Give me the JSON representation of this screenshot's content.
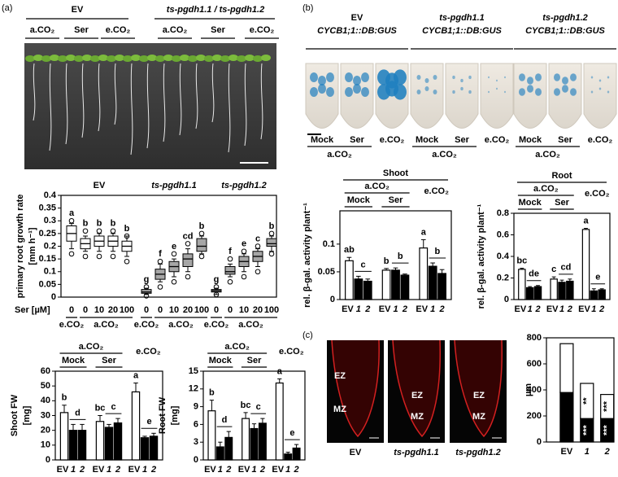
{
  "panel_labels": [
    "(a)",
    "(b)",
    "(c)"
  ],
  "photo_a": {
    "genotypes": [
      "EV",
      "ts-pgdh1.1 / ts-pgdh1.2"
    ],
    "conditions": [
      "a.CO₂",
      "Ser",
      "e.CO₂",
      "a.CO₂",
      "Ser",
      "e.CO₂"
    ]
  },
  "photo_b": {
    "genotypes": [
      "EV",
      "ts-pgdh1.1",
      "ts-pgdh1.2"
    ],
    "reporters": [
      "CYCB1;1::DB:GUS",
      "CYCB1;1::DB:GUS",
      "CYCB1;1::DB:GUS"
    ],
    "treatments": [
      "Mock",
      "Ser",
      "e.CO₂",
      "Mock",
      "Ser",
      "e.CO₂",
      "Mock",
      "Ser",
      "e.CO₂"
    ],
    "co2": [
      "a.CO₂",
      "a.CO₂",
      "a.CO₂"
    ]
  },
  "photo_c": {
    "images": [
      {
        "caption": "EV",
        "zones": [
          "EZ",
          "MZ"
        ]
      },
      {
        "caption": "ts-pgdh1.1",
        "zones": [
          "EZ",
          "MZ"
        ]
      },
      {
        "caption": "ts-pgdh1.2",
        "zones": [
          "EZ",
          "MZ"
        ]
      }
    ]
  },
  "chart_data": [
    {
      "type": "box",
      "ylabel": [
        "primary root growth rate",
        "[mm h⁻¹]"
      ],
      "groups": [
        "EV",
        "ts-pgdh1.1",
        "ts-pgdh1.2"
      ],
      "colors": [
        "#ffffff",
        "#a6a6a6",
        "#a6a6a6"
      ],
      "xlabel": "Ser [µM]",
      "categories": [
        "0",
        "0",
        "10",
        "20",
        "100",
        "0",
        "0",
        "10",
        "20",
        "100",
        "0",
        "0",
        "10",
        "20",
        "100"
      ],
      "conditions": [
        "e.CO₂",
        "a.CO₂",
        "e.CO₂",
        "a.CO₂",
        "e.CO₂",
        "a.CO₂"
      ],
      "boxes": [
        {
          "whislo": 0.19,
          "q1": 0.22,
          "med": 0.25,
          "q3": 0.28,
          "whishi": 0.29,
          "fliers": [
            0.17,
            0.3
          ]
        },
        {
          "whislo": 0.18,
          "q1": 0.19,
          "med": 0.21,
          "q3": 0.23,
          "whishi": 0.24,
          "fliers": [
            0.16,
            0.26
          ]
        },
        {
          "whislo": 0.18,
          "q1": 0.2,
          "med": 0.22,
          "q3": 0.24,
          "whishi": 0.25,
          "fliers": [
            0.16,
            0.26
          ]
        },
        {
          "whislo": 0.18,
          "q1": 0.2,
          "med": 0.22,
          "q3": 0.24,
          "whishi": 0.25,
          "fliers": [
            0.16,
            0.26
          ]
        },
        {
          "whislo": 0.16,
          "q1": 0.18,
          "med": 0.2,
          "q3": 0.22,
          "whishi": 0.24,
          "fliers": [
            0.14,
            0.24
          ]
        },
        {
          "whislo": 0.01,
          "q1": 0.015,
          "med": 0.02,
          "q3": 0.03,
          "whishi": 0.035,
          "fliers": [
            0.005,
            0.04
          ]
        },
        {
          "whislo": 0.06,
          "q1": 0.07,
          "med": 0.09,
          "q3": 0.11,
          "whishi": 0.13,
          "fliers": [
            0.04,
            0.14
          ]
        },
        {
          "whislo": 0.08,
          "q1": 0.1,
          "med": 0.12,
          "q3": 0.14,
          "whishi": 0.15,
          "fliers": [
            0.06,
            0.17
          ]
        },
        {
          "whislo": 0.1,
          "q1": 0.12,
          "med": 0.15,
          "q3": 0.17,
          "whishi": 0.19,
          "fliers": [
            0.08,
            0.21
          ]
        },
        {
          "whislo": 0.17,
          "q1": 0.18,
          "med": 0.2,
          "q3": 0.23,
          "whishi": 0.24,
          "fliers": [
            0.16,
            0.25
          ]
        },
        {
          "whislo": 0.01,
          "q1": 0.02,
          "med": 0.025,
          "q3": 0.03,
          "whishi": 0.035,
          "fliers": [
            0.01,
            0.04
          ]
        },
        {
          "whislo": 0.08,
          "q1": 0.09,
          "med": 0.1,
          "q3": 0.12,
          "whishi": 0.13,
          "fliers": [
            0.06,
            0.15
          ]
        },
        {
          "whislo": 0.1,
          "q1": 0.12,
          "med": 0.14,
          "q3": 0.16,
          "whishi": 0.17,
          "fliers": [
            0.08,
            0.18
          ]
        },
        {
          "whislo": 0.12,
          "q1": 0.14,
          "med": 0.16,
          "q3": 0.18,
          "whishi": 0.19,
          "fliers": [
            0.1,
            0.2
          ]
        },
        {
          "whislo": 0.18,
          "q1": 0.2,
          "med": 0.21,
          "q3": 0.23,
          "whishi": 0.24,
          "fliers": [
            0.17,
            0.25
          ]
        }
      ],
      "letters": [
        "a",
        "b",
        "b",
        "b",
        "b",
        "g",
        "f",
        "e",
        "cd",
        "b",
        "g",
        "f",
        "e",
        "c",
        "b"
      ],
      "ylim": [
        0,
        0.4
      ],
      "yticks": [
        0,
        0.05,
        0.1,
        0.15,
        0.2,
        0.25,
        0.3,
        0.35,
        0.4
      ]
    },
    {
      "type": "bar",
      "ylabel": [
        "Shoot FW",
        "[mg]"
      ],
      "super_label": "a.CO₂",
      "group_labels": [
        "Mock",
        "Ser",
        "e.CO₂"
      ],
      "categories": [
        "EV",
        "1",
        "2",
        "EV",
        "1",
        "2",
        "EV",
        "1",
        "2"
      ],
      "values": [
        32,
        20,
        20,
        26,
        22,
        25,
        46,
        15,
        16
      ],
      "errors": [
        5,
        4,
        4,
        4,
        2,
        3,
        6,
        1,
        2
      ],
      "colors": [
        "#ffffff",
        "#000000",
        "#000000",
        "#ffffff",
        "#000000",
        "#000000",
        "#ffffff",
        "#000000",
        "#000000"
      ],
      "letters": [
        "b",
        "d",
        null,
        "bc",
        "c",
        null,
        "a",
        "e",
        null
      ],
      "ylim": [
        0,
        60
      ],
      "yticks": [
        0,
        10,
        20,
        30,
        40,
        50,
        60
      ]
    },
    {
      "type": "bar",
      "ylabel": [
        "Root FW",
        "[mg]"
      ],
      "super_label": "a.CO₂",
      "group_labels": [
        "Mock",
        "Ser",
        "e.CO₂"
      ],
      "categories": [
        "EV",
        "1",
        "2",
        "EV",
        "1",
        "2",
        "EV",
        "1",
        "2"
      ],
      "values": [
        8.3,
        2.2,
        3.8,
        7,
        5.3,
        6.2,
        13,
        1,
        2
      ],
      "errors": [
        1.8,
        0.8,
        1,
        1,
        0.8,
        0.8,
        0.7,
        0.3,
        0.6
      ],
      "colors": [
        "#ffffff",
        "#000000",
        "#000000",
        "#ffffff",
        "#000000",
        "#000000",
        "#ffffff",
        "#000000",
        "#000000"
      ],
      "letters": [
        "b",
        "d",
        null,
        "bc",
        "c",
        null,
        "a",
        "e",
        null
      ],
      "ylim": [
        0,
        15
      ],
      "yticks": [
        0,
        3,
        6,
        9,
        12,
        15
      ]
    },
    {
      "type": "bar",
      "title": "Shoot",
      "ylabel": "rel. β-gal. activity plant⁻¹",
      "super_label": "a.CO₂",
      "group_labels": [
        "Mock",
        "Ser",
        "e.CO₂"
      ],
      "categories": [
        "EV",
        "1",
        "2",
        "EV",
        "1",
        "2",
        "EV",
        "1",
        "2"
      ],
      "values": [
        0.07,
        0.037,
        0.033,
        0.053,
        0.053,
        0.044,
        0.093,
        0.06,
        0.047
      ],
      "errors": [
        0.006,
        0.005,
        0.004,
        0.003,
        0.004,
        0.002,
        0.015,
        0.006,
        0.007
      ],
      "colors": [
        "#ffffff",
        "#000000",
        "#000000",
        "#ffffff",
        "#000000",
        "#000000",
        "#ffffff",
        "#000000",
        "#000000"
      ],
      "letters": [
        "ab",
        "c",
        null,
        "b",
        "b",
        null,
        "a",
        "b",
        null
      ],
      "ylim": [
        0,
        0.16
      ],
      "yticks": [
        0,
        0.05,
        0.1
      ]
    },
    {
      "type": "bar",
      "title": "Root",
      "ylabel": "rel. β-gal. activity plant⁻¹",
      "super_label": "a.CO₂",
      "group_labels": [
        "Mock",
        "Ser",
        "e.CO₂"
      ],
      "categories": [
        "EV",
        "1",
        "2",
        "EV",
        "1",
        "2",
        "EV",
        "1",
        "2"
      ],
      "values": [
        0.28,
        0.11,
        0.12,
        0.19,
        0.16,
        0.17,
        0.65,
        0.08,
        0.09
      ],
      "errors": [
        0.01,
        0.01,
        0.01,
        0.02,
        0.02,
        0.02,
        0.01,
        0.02,
        0.01
      ],
      "colors": [
        "#ffffff",
        "#000000",
        "#000000",
        "#ffffff",
        "#000000",
        "#000000",
        "#ffffff",
        "#000000",
        "#000000"
      ],
      "letters": [
        "bc",
        "de",
        null,
        "c",
        "cd",
        null,
        "a",
        "e",
        null
      ],
      "ylim": [
        0,
        0.8
      ],
      "yticks": [
        0,
        0.2,
        0.4,
        0.6,
        0.8
      ]
    },
    {
      "type": "stacked_bar",
      "ylabel": "µm",
      "categories": [
        "EV",
        "1",
        "2"
      ],
      "series": [
        {
          "color": "#000000",
          "values": [
            380,
            180,
            180
          ],
          "labels": [
            null,
            "***",
            "***"
          ]
        },
        {
          "color": "#ffffff",
          "values": [
            375,
            270,
            185
          ],
          "labels": [
            null,
            "**",
            "***"
          ]
        }
      ],
      "ylim": [
        0,
        800
      ],
      "yticks": [
        0,
        200,
        400,
        600,
        800
      ]
    }
  ]
}
